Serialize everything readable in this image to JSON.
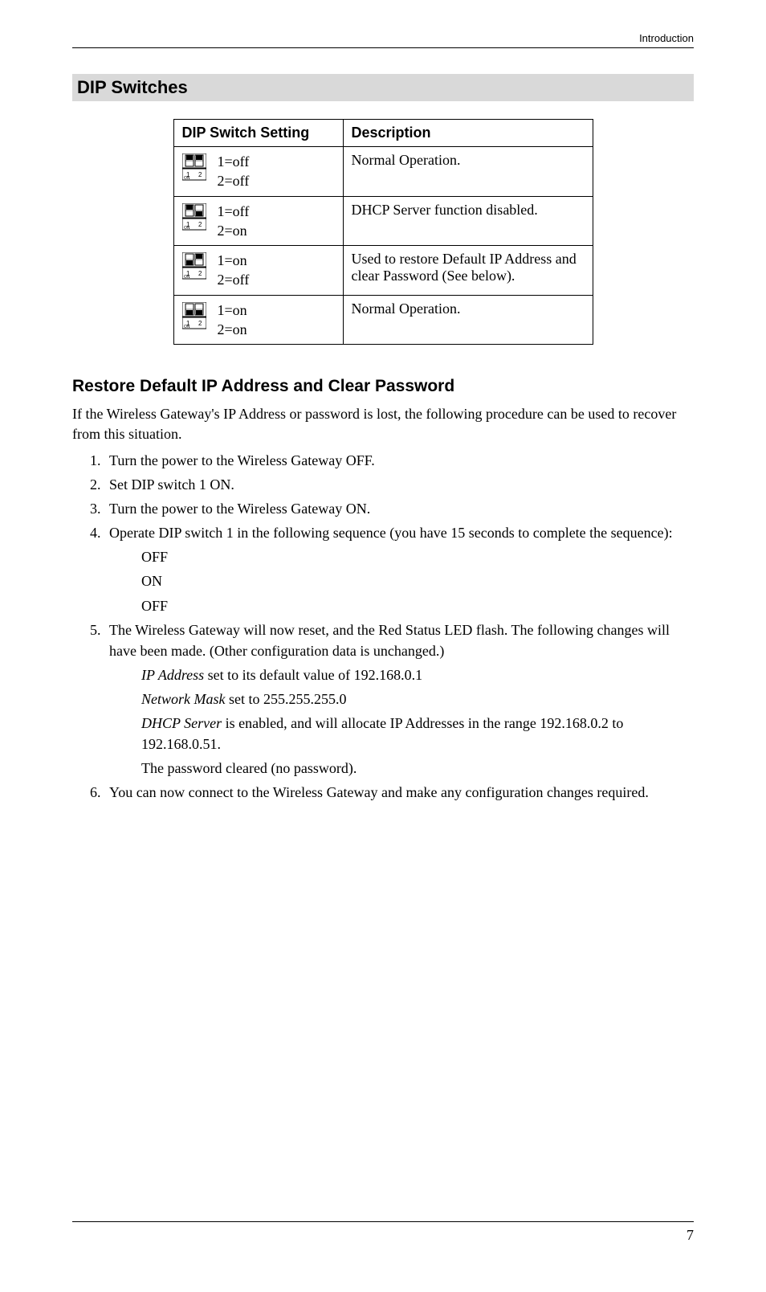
{
  "header": {
    "breadcrumb": "Introduction"
  },
  "section": {
    "title": "DIP Switches"
  },
  "dip_table": {
    "columns": [
      "DIP Switch Setting",
      "Description"
    ],
    "rows": [
      {
        "sw1": "off",
        "sw2": "off",
        "line1": "1=off",
        "line2": "2=off",
        "desc": "Normal Operation."
      },
      {
        "sw1": "off",
        "sw2": "on",
        "line1": "1=off",
        "line2": "2=on",
        "desc": "DHCP Server function disabled."
      },
      {
        "sw1": "on",
        "sw2": "off",
        "line1": "1=on",
        "line2": "2=off",
        "desc": "Used to restore Default IP Address and clear Password (See below)."
      },
      {
        "sw1": "on",
        "sw2": "on",
        "line1": "1=on",
        "line2": "2=on",
        "desc": "Normal Operation."
      }
    ]
  },
  "subheading": "Restore Default IP Address and Clear Password",
  "intro_para": "If the Wireless Gateway's IP Address or password is lost, the following procedure can be used to recover from this situation.",
  "steps": {
    "s1": "Turn the power to the Wireless Gateway OFF.",
    "s2": "Set DIP switch 1 ON.",
    "s3": "Turn the power to the Wireless Gateway ON.",
    "s4": "Operate DIP switch 1 in the following sequence (you have 15 seconds to complete the sequence):",
    "s4_seq": [
      "OFF",
      "ON",
      "OFF"
    ],
    "s5": "The Wireless Gateway will now reset, and the Red Status LED flash. The following changes will have been made. (Other configuration data is unchanged.)",
    "s5_items": [
      {
        "italic": "IP Address",
        "rest": " set to its default value of 192.168.0.1"
      },
      {
        "italic": "Network Mask",
        "rest": " set to 255.255.255.0"
      },
      {
        "italic": "DHCP Server",
        "rest": " is enabled, and will allocate IP Addresses in the range 192.168.0.2 to 192.168.0.51."
      },
      {
        "italic": "",
        "rest": "The password cleared (no password)."
      }
    ],
    "s6": "You can now connect to the Wireless Gateway and make any configuration changes required."
  },
  "footer": {
    "page": "7"
  },
  "style": {
    "colors": {
      "text": "#000000",
      "section_bg": "#d9d9d9",
      "border": "#000000",
      "background": "#ffffff"
    },
    "fonts": {
      "body_family": "Times New Roman, serif",
      "heading_family": "Arial, sans-serif",
      "body_size_pt": 13,
      "section_title_size_pt": 16,
      "subheading_size_pt": 15
    }
  }
}
